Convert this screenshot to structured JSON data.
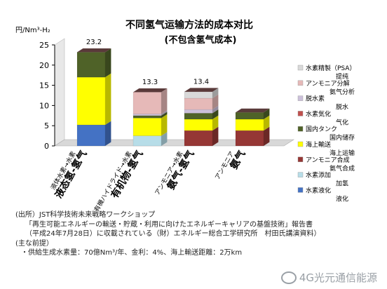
{
  "chart_data": {
    "type": "bar",
    "stacked": true,
    "title": "不同氢气运输方法的成本对比",
    "subtitle": "(不包含氢气成本)",
    "ylabel": "円/Nm³-H₂",
    "ylim": [
      0,
      25
    ],
    "yticks": [
      0,
      5,
      10,
      15,
      20,
      25
    ],
    "grid": false,
    "legend_position": "right",
    "categories": [
      {
        "jp": "液体水素→水素",
        "cn": "液态氢-氢气"
      },
      {
        "jp": "有機ハイドライド→水素",
        "cn": "有机物-氢气"
      },
      {
        "jp": "アンモニア→水素",
        "cn": "氨气-氢气"
      },
      {
        "jp": "アンモニア",
        "cn": "氨气"
      }
    ],
    "totals": [
      "23.2",
      "13.3",
      "13.4",
      ""
    ],
    "series": [
      {
        "name": "水素液化",
        "cn": "液化",
        "color": "#4472c4",
        "values": [
          5.2,
          0,
          0,
          0
        ]
      },
      {
        "name": "水素添加",
        "cn": "加氢",
        "color": "#b7dde8",
        "values": [
          0,
          2.5,
          0,
          0
        ]
      },
      {
        "name": "アンモニア合成",
        "cn": "氨气合成",
        "color": "#953735",
        "values": [
          0,
          0,
          3.8,
          3.8
        ]
      },
      {
        "name": "海上輸送",
        "cn": "海上运输",
        "color": "#ffff00",
        "values": [
          11.8,
          4.4,
          2.8,
          2.8
        ]
      },
      {
        "name": "国内タンク",
        "cn": "国内储存",
        "color": "#4f6228",
        "values": [
          6.2,
          0.6,
          1.5,
          1.7
        ]
      },
      {
        "name": "水素気化",
        "cn": "气化",
        "color": "#c0504d",
        "values": [
          0,
          0,
          0,
          0
        ]
      },
      {
        "name": "脱水素",
        "cn": "脱水",
        "color": "#ccc0da",
        "values": [
          0,
          0.4,
          0.9,
          0
        ]
      },
      {
        "name": "アンモニア分解",
        "cn": "氨气分析",
        "color": "#e6b9b8",
        "values": [
          0,
          5.4,
          2.8,
          0
        ]
      },
      {
        "name": "水素精製（PSA）",
        "cn": "提纯",
        "color": "#d9d9d9",
        "values": [
          0,
          0,
          1.6,
          0
        ]
      }
    ]
  },
  "notes": {
    "line1": "(出所）JST科学技術未来戦略ワークショップ",
    "line2": "「再生可能エネルギーの輸送・貯蔵・利用に向けたエネルギーキャリアの基盤技術」報告書",
    "line3": "（平成24年7月28日）に収載されている（財）エネルギー総合工学研究所　村田氏講演資料）",
    "line4": "(主な前提）",
    "line5": "・供給生成水素量：70億Nm³/年、金利：4%、海上輸送距離：2万km"
  },
  "watermark": "4G光元通信能源",
  "colors": {
    "axis": "#000000",
    "wall": "#e8e8e8",
    "floor": "#d8d8d8"
  }
}
